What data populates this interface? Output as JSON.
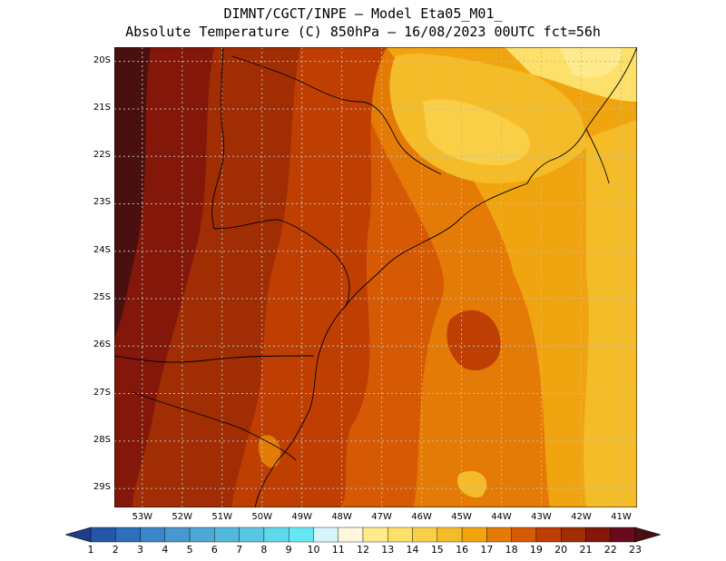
{
  "title": {
    "line1": "DIMNT/CGCT/INPE –  Model Eta05_M01_",
    "line2": "Absolute Temperature (C) 850hPa –  16/08/2023 00UTC fct=56h"
  },
  "map": {
    "lat_labels": [
      "20S",
      "21S",
      "22S",
      "23S",
      "24S",
      "25S",
      "26S",
      "27S",
      "28S",
      "29S"
    ],
    "lon_labels": [
      "53W",
      "52W",
      "51W",
      "50W",
      "49W",
      "48W",
      "47W",
      "46W",
      "45W",
      "44W",
      "43W",
      "42W",
      "41W"
    ],
    "lon_range": [
      -53.7,
      -40.6
    ],
    "lat_range": [
      -29.4,
      -19.7
    ]
  },
  "colorbar": {
    "labels": [
      "1",
      "2",
      "3",
      "4",
      "5",
      "6",
      "7",
      "8",
      "9",
      "10",
      "11",
      "12",
      "13",
      "14",
      "15",
      "16",
      "17",
      "18",
      "19",
      "20",
      "21",
      "22",
      "23"
    ],
    "colors": [
      "#1f3c8a",
      "#2456a8",
      "#2d6fbd",
      "#3a86c8",
      "#4698cf",
      "#4da8d6",
      "#52b8dc",
      "#58c8e2",
      "#5fd8ea",
      "#66e8f4",
      "#d4f6fb",
      "#fff6dc",
      "#ffea8c",
      "#fde069",
      "#f9cf48",
      "#f5bc2a",
      "#f0a510",
      "#e47b06",
      "#d65a04",
      "#bf3f03",
      "#a02d04",
      "#82170a",
      "#6a0a20",
      "#4a1010"
    ]
  },
  "colors": {
    "land_border": "#000000",
    "grid": "#bbbbbb"
  }
}
